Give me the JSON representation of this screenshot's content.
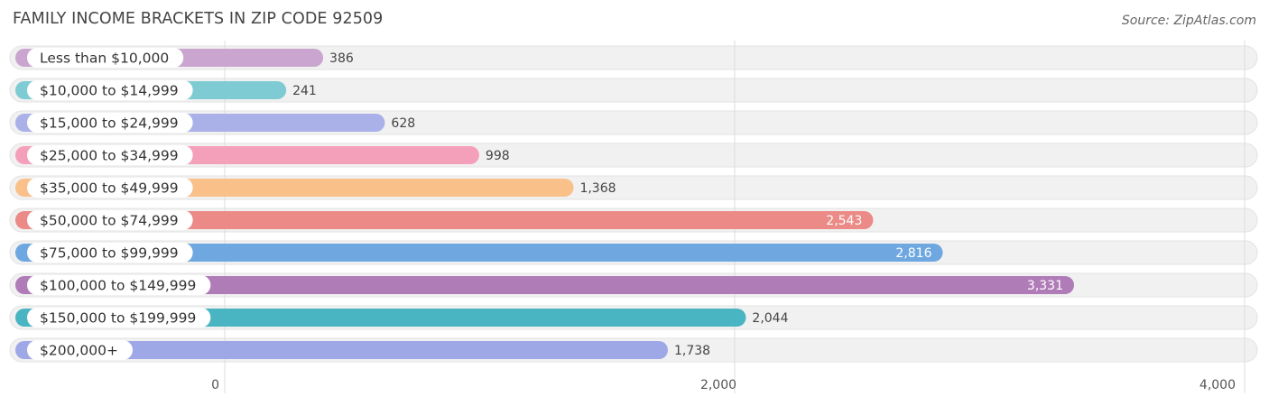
{
  "header": {
    "title": "FAMILY INCOME BRACKETS IN ZIP CODE 92509",
    "source": "Source: ZipAtlas.com"
  },
  "chart_data": {
    "type": "bar",
    "orientation": "horizontal",
    "title": "FAMILY INCOME BRACKETS IN ZIP CODE 92509",
    "xlabel": "",
    "ylabel": "",
    "xlim": [
      0,
      4000
    ],
    "xticks": [
      0,
      2000,
      4000
    ],
    "xtick_labels": [
      "0",
      "2,000",
      "4,000"
    ],
    "grid": true,
    "categories": [
      "Less than $10,000",
      "$10,000 to $14,999",
      "$15,000 to $24,999",
      "$25,000 to $34,999",
      "$35,000 to $49,999",
      "$50,000 to $74,999",
      "$75,000 to $99,999",
      "$100,000 to $149,999",
      "$150,000 to $199,999",
      "$200,000+"
    ],
    "values": [
      386,
      241,
      628,
      998,
      1368,
      2543,
      2816,
      3331,
      2044,
      1738
    ],
    "value_labels": [
      "386",
      "241",
      "628",
      "998",
      "1,368",
      "2,543",
      "2,816",
      "3,331",
      "2,044",
      "1,738"
    ],
    "colors": [
      "#c9a5cf",
      "#7ecbd3",
      "#aab1e8",
      "#f5a0bb",
      "#f9c08a",
      "#eb8a86",
      "#6fa8e0",
      "#b07cb8",
      "#4ab5c2",
      "#9ea8e6"
    ]
  }
}
